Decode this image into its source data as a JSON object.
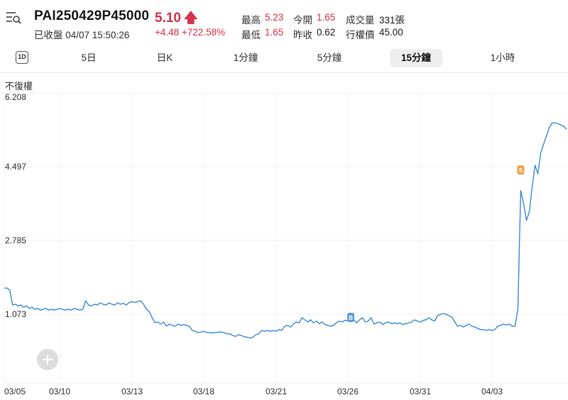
{
  "header": {
    "symbol": "PAI250429P45000",
    "status": "已收盤 04/07 15:50:26",
    "price": "5.10",
    "price_arrow": "🡅",
    "change": "+4.48 +722.58%",
    "up_color": "#d6334c"
  },
  "stats": {
    "high_label": "最高",
    "high_value": "5.23",
    "open_label": "今開",
    "open_value": "1.65",
    "volume_label": "成交量",
    "volume_value": "331張",
    "low_label": "最低",
    "low_value": "1.65",
    "prev_close_label": "昨收",
    "prev_close_value": "0.62",
    "strike_label": "行權價",
    "strike_value": "45.00"
  },
  "tabs": {
    "day_icon": "1D",
    "items": [
      "5日",
      "日K",
      "1分鐘",
      "5分鐘",
      "15分鐘",
      "1小時"
    ],
    "active": "15分鐘"
  },
  "adjustment_label": "不復權",
  "chart_data": {
    "type": "line",
    "line_color": "#3d8bd9",
    "marker_blue": "#5b9bd5",
    "marker_orange": "#f0a04b",
    "y_ticks": [
      "6.208",
      "4.497",
      "2.785",
      "1.073"
    ],
    "ylim": [
      -0.64,
      6.208
    ],
    "x_ticks": [
      "03/05",
      "03/10",
      "03/13",
      "03/18",
      "03/21",
      "03/26",
      "03/31",
      "04/03"
    ],
    "x_tick_index": [
      0,
      20,
      45,
      70,
      95,
      120,
      145,
      170
    ],
    "markers": [
      {
        "index": 121,
        "value": 0.9,
        "label": "B",
        "color": "blue"
      },
      {
        "index": 180,
        "value": 4.38,
        "label": "S",
        "color": "orange"
      }
    ],
    "series": [
      {
        "values": [
          1.6,
          1.6,
          1.55,
          1.2,
          1.22,
          1.18,
          1.2,
          1.15,
          1.18,
          1.12,
          1.15,
          1.1,
          1.12,
          1.08,
          1.1,
          1.12,
          1.08,
          1.1,
          1.08,
          1.1,
          1.12,
          1.1,
          1.08,
          1.1,
          1.08,
          1.12,
          1.1,
          1.08,
          1.1,
          1.3,
          1.2,
          1.18,
          1.22,
          1.2,
          1.25,
          1.22,
          1.2,
          1.25,
          1.22,
          1.2,
          1.25,
          1.22,
          1.24,
          1.2,
          1.26,
          1.28,
          1.26,
          1.28,
          1.3,
          1.22,
          1.1,
          1.05,
          0.9,
          0.78,
          0.8,
          0.75,
          0.8,
          0.7,
          0.75,
          0.72,
          0.7,
          0.75,
          0.72,
          0.74,
          0.72,
          0.7,
          0.6,
          0.58,
          0.55,
          0.56,
          0.58,
          0.55,
          0.55,
          0.54,
          0.55,
          0.56,
          0.56,
          0.55,
          0.52,
          0.52,
          0.48,
          0.46,
          0.5,
          0.48,
          0.45,
          0.44,
          0.42,
          0.44,
          0.5,
          0.52,
          0.6,
          0.58,
          0.6,
          0.58,
          0.6,
          0.58,
          0.62,
          0.6,
          0.7,
          0.72,
          0.68,
          0.75,
          0.8,
          0.78,
          0.9,
          0.85,
          0.8,
          0.85,
          0.78,
          0.82,
          0.76,
          0.8,
          0.74,
          0.72,
          0.7,
          0.72,
          0.78,
          0.82,
          0.8,
          0.84,
          0.82,
          0.9,
          0.85,
          0.78,
          0.85,
          0.9,
          0.8,
          0.82,
          0.9,
          0.75,
          0.78,
          0.8,
          0.74,
          0.78,
          0.8,
          0.76,
          0.78,
          0.76,
          0.78,
          0.74,
          0.76,
          0.78,
          0.8,
          0.85,
          0.82,
          0.8,
          0.84,
          0.85,
          0.9,
          0.85,
          0.82,
          0.95,
          0.98,
          1.0,
          0.98,
          0.95,
          0.92,
          0.8,
          0.7,
          0.72,
          0.68,
          0.72,
          0.75,
          0.7,
          0.68,
          0.65,
          0.62,
          0.62,
          0.6,
          0.62,
          0.6,
          0.62,
          0.7,
          0.72,
          0.75,
          0.73,
          0.75,
          0.7,
          0.7,
          1.1,
          3.9,
          3.6,
          3.2,
          3.4,
          4.0,
          4.5,
          4.3,
          4.8,
          5.0,
          5.2,
          5.4,
          5.5,
          5.5,
          5.48,
          5.45,
          5.42,
          5.35
        ]
      }
    ]
  }
}
